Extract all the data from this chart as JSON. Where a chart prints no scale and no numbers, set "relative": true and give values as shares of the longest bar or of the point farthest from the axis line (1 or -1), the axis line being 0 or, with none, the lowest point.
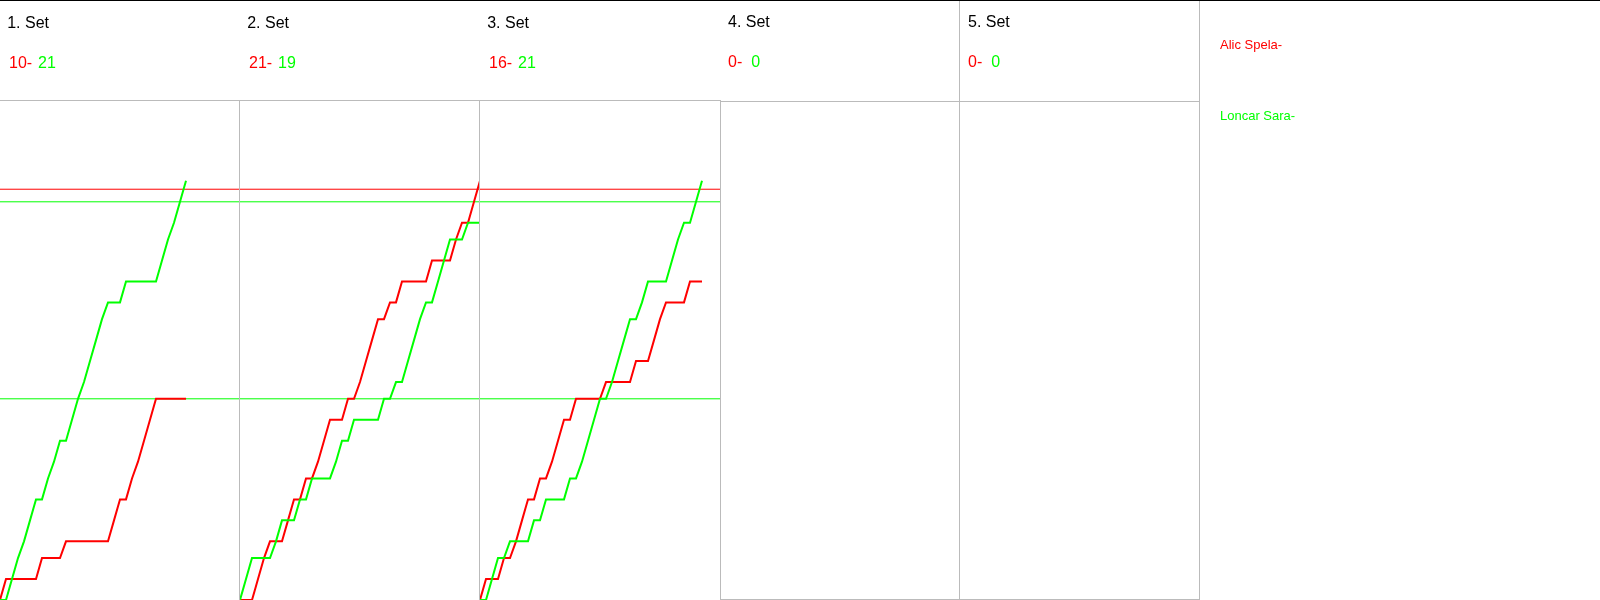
{
  "chart_data": [
    {
      "type": "line",
      "title": "1. Set",
      "annotations": [
        "10-",
        "21"
      ],
      "relative": true,
      "marker": "none",
      "line_style": "solid",
      "categories": [
        null,
        null,
        null,
        null,
        null,
        null,
        null,
        null,
        null,
        null,
        null,
        null,
        null,
        null,
        null,
        null,
        null,
        null,
        null,
        null,
        null,
        null,
        null,
        null,
        null,
        null,
        null,
        null,
        null,
        null,
        null,
        null
      ],
      "series": [
        {
          "name": "Alic Spela-",
          "color": "#ff0000",
          "values": [
            0,
            0.05,
            0.05,
            0.05,
            0.05,
            0.05,
            0.05,
            0.1,
            0.1,
            0.1,
            0.1,
            0.14,
            0.14,
            0.14,
            0.14,
            0.14,
            0.14,
            0.14,
            0.14,
            0.19,
            0.24,
            0.24,
            0.29,
            0.33,
            0.38,
            0.43,
            0.48,
            0.48,
            0.48,
            0.48,
            0.48,
            0.48
          ]
        },
        {
          "name": "Loncar Sara-",
          "color": "#00ff00",
          "values": [
            0,
            0,
            0.05,
            0.1,
            0.14,
            0.19,
            0.24,
            0.24,
            0.29,
            0.33,
            0.38,
            0.38,
            0.43,
            0.48,
            0.52,
            0.57,
            0.62,
            0.67,
            0.71,
            0.71,
            0.71,
            0.76,
            0.76,
            0.76,
            0.76,
            0.76,
            0.76,
            0.81,
            0.86,
            0.9,
            0.95,
            1
          ]
        }
      ],
      "ref_lines": [
        {
          "axis": "y",
          "value": 0.98,
          "color": "#ff0000"
        },
        {
          "axis": "y",
          "value": 0.95,
          "color": "#00ff00"
        },
        {
          "axis": "y",
          "value": 0.48,
          "color": "#00ff00"
        }
      ]
    },
    {
      "type": "line",
      "title": "2. Set",
      "annotations": [
        "21-",
        "19"
      ],
      "relative": true,
      "marker": "none",
      "line_style": "solid",
      "categories": [
        null,
        null,
        null,
        null,
        null,
        null,
        null,
        null,
        null,
        null,
        null,
        null,
        null,
        null,
        null,
        null,
        null,
        null,
        null,
        null,
        null,
        null,
        null,
        null,
        null,
        null,
        null,
        null,
        null,
        null,
        null,
        null,
        null,
        null,
        null,
        null,
        null,
        null,
        null,
        null,
        null
      ],
      "series": [
        {
          "color": "#ff0000",
          "values": [
            0,
            0,
            0,
            0.05,
            0.1,
            0.14,
            0.14,
            0.14,
            0.19,
            0.24,
            0.24,
            0.29,
            0.29,
            0.33,
            0.38,
            0.43,
            0.43,
            0.43,
            0.48,
            0.48,
            0.52,
            0.57,
            0.62,
            0.67,
            0.67,
            0.71,
            0.71,
            0.76,
            0.76,
            0.76,
            0.76,
            0.76,
            0.81,
            0.81,
            0.81,
            0.81,
            0.86,
            0.9,
            0.9,
            0.95,
            1
          ]
        },
        {
          "color": "#00ff00",
          "values": [
            0,
            0.05,
            0.1,
            0.1,
            0.1,
            0.1,
            0.14,
            0.19,
            0.19,
            0.19,
            0.24,
            0.24,
            0.29,
            0.29,
            0.29,
            0.29,
            0.33,
            0.38,
            0.38,
            0.43,
            0.43,
            0.43,
            0.43,
            0.43,
            0.48,
            0.48,
            0.52,
            0.52,
            0.57,
            0.62,
            0.67,
            0.71,
            0.71,
            0.76,
            0.81,
            0.86,
            0.86,
            0.86,
            0.9,
            0.9,
            0.9
          ]
        }
      ],
      "ref_lines": [
        {
          "axis": "y",
          "value": 0.98,
          "color": "#ff0000"
        },
        {
          "axis": "y",
          "value": 0.95,
          "color": "#00ff00"
        },
        {
          "axis": "y",
          "value": 0.48,
          "color": "#00ff00"
        }
      ]
    },
    {
      "type": "line",
      "title": "3. Set",
      "annotations": [
        "16-",
        "21"
      ],
      "relative": true,
      "marker": "none",
      "line_style": "solid",
      "categories": [
        null,
        null,
        null,
        null,
        null,
        null,
        null,
        null,
        null,
        null,
        null,
        null,
        null,
        null,
        null,
        null,
        null,
        null,
        null,
        null,
        null,
        null,
        null,
        null,
        null,
        null,
        null,
        null,
        null,
        null,
        null,
        null,
        null,
        null,
        null,
        null,
        null,
        null
      ],
      "series": [
        {
          "color": "#ff0000",
          "values": [
            0,
            0.05,
            0.05,
            0.05,
            0.1,
            0.1,
            0.14,
            0.19,
            0.24,
            0.24,
            0.29,
            0.29,
            0.33,
            0.38,
            0.43,
            0.43,
            0.48,
            0.48,
            0.48,
            0.48,
            0.48,
            0.52,
            0.52,
            0.52,
            0.52,
            0.52,
            0.57,
            0.57,
            0.57,
            0.62,
            0.67,
            0.71,
            0.71,
            0.71,
            0.71,
            0.76,
            0.76,
            0.76
          ]
        },
        {
          "color": "#00ff00",
          "values": [
            0,
            0,
            0.05,
            0.1,
            0.1,
            0.14,
            0.14,
            0.14,
            0.14,
            0.19,
            0.19,
            0.24,
            0.24,
            0.24,
            0.24,
            0.29,
            0.29,
            0.33,
            0.38,
            0.43,
            0.48,
            0.48,
            0.52,
            0.57,
            0.62,
            0.67,
            0.67,
            0.71,
            0.76,
            0.76,
            0.76,
            0.76,
            0.81,
            0.86,
            0.9,
            0.9,
            0.95,
            1
          ]
        }
      ],
      "ref_lines": [
        {
          "axis": "y",
          "value": 0.98,
          "color": "#ff0000"
        },
        {
          "axis": "y",
          "value": 0.95,
          "color": "#00ff00"
        },
        {
          "axis": "y",
          "value": 0.48,
          "color": "#00ff00"
        }
      ]
    },
    {
      "type": "other",
      "title": "4. Set",
      "annotations": [
        "0-",
        "  0"
      ]
    },
    {
      "type": "other",
      "title": "5. Set",
      "annotations": [
        "0-",
        "  0"
      ]
    }
  ]
}
